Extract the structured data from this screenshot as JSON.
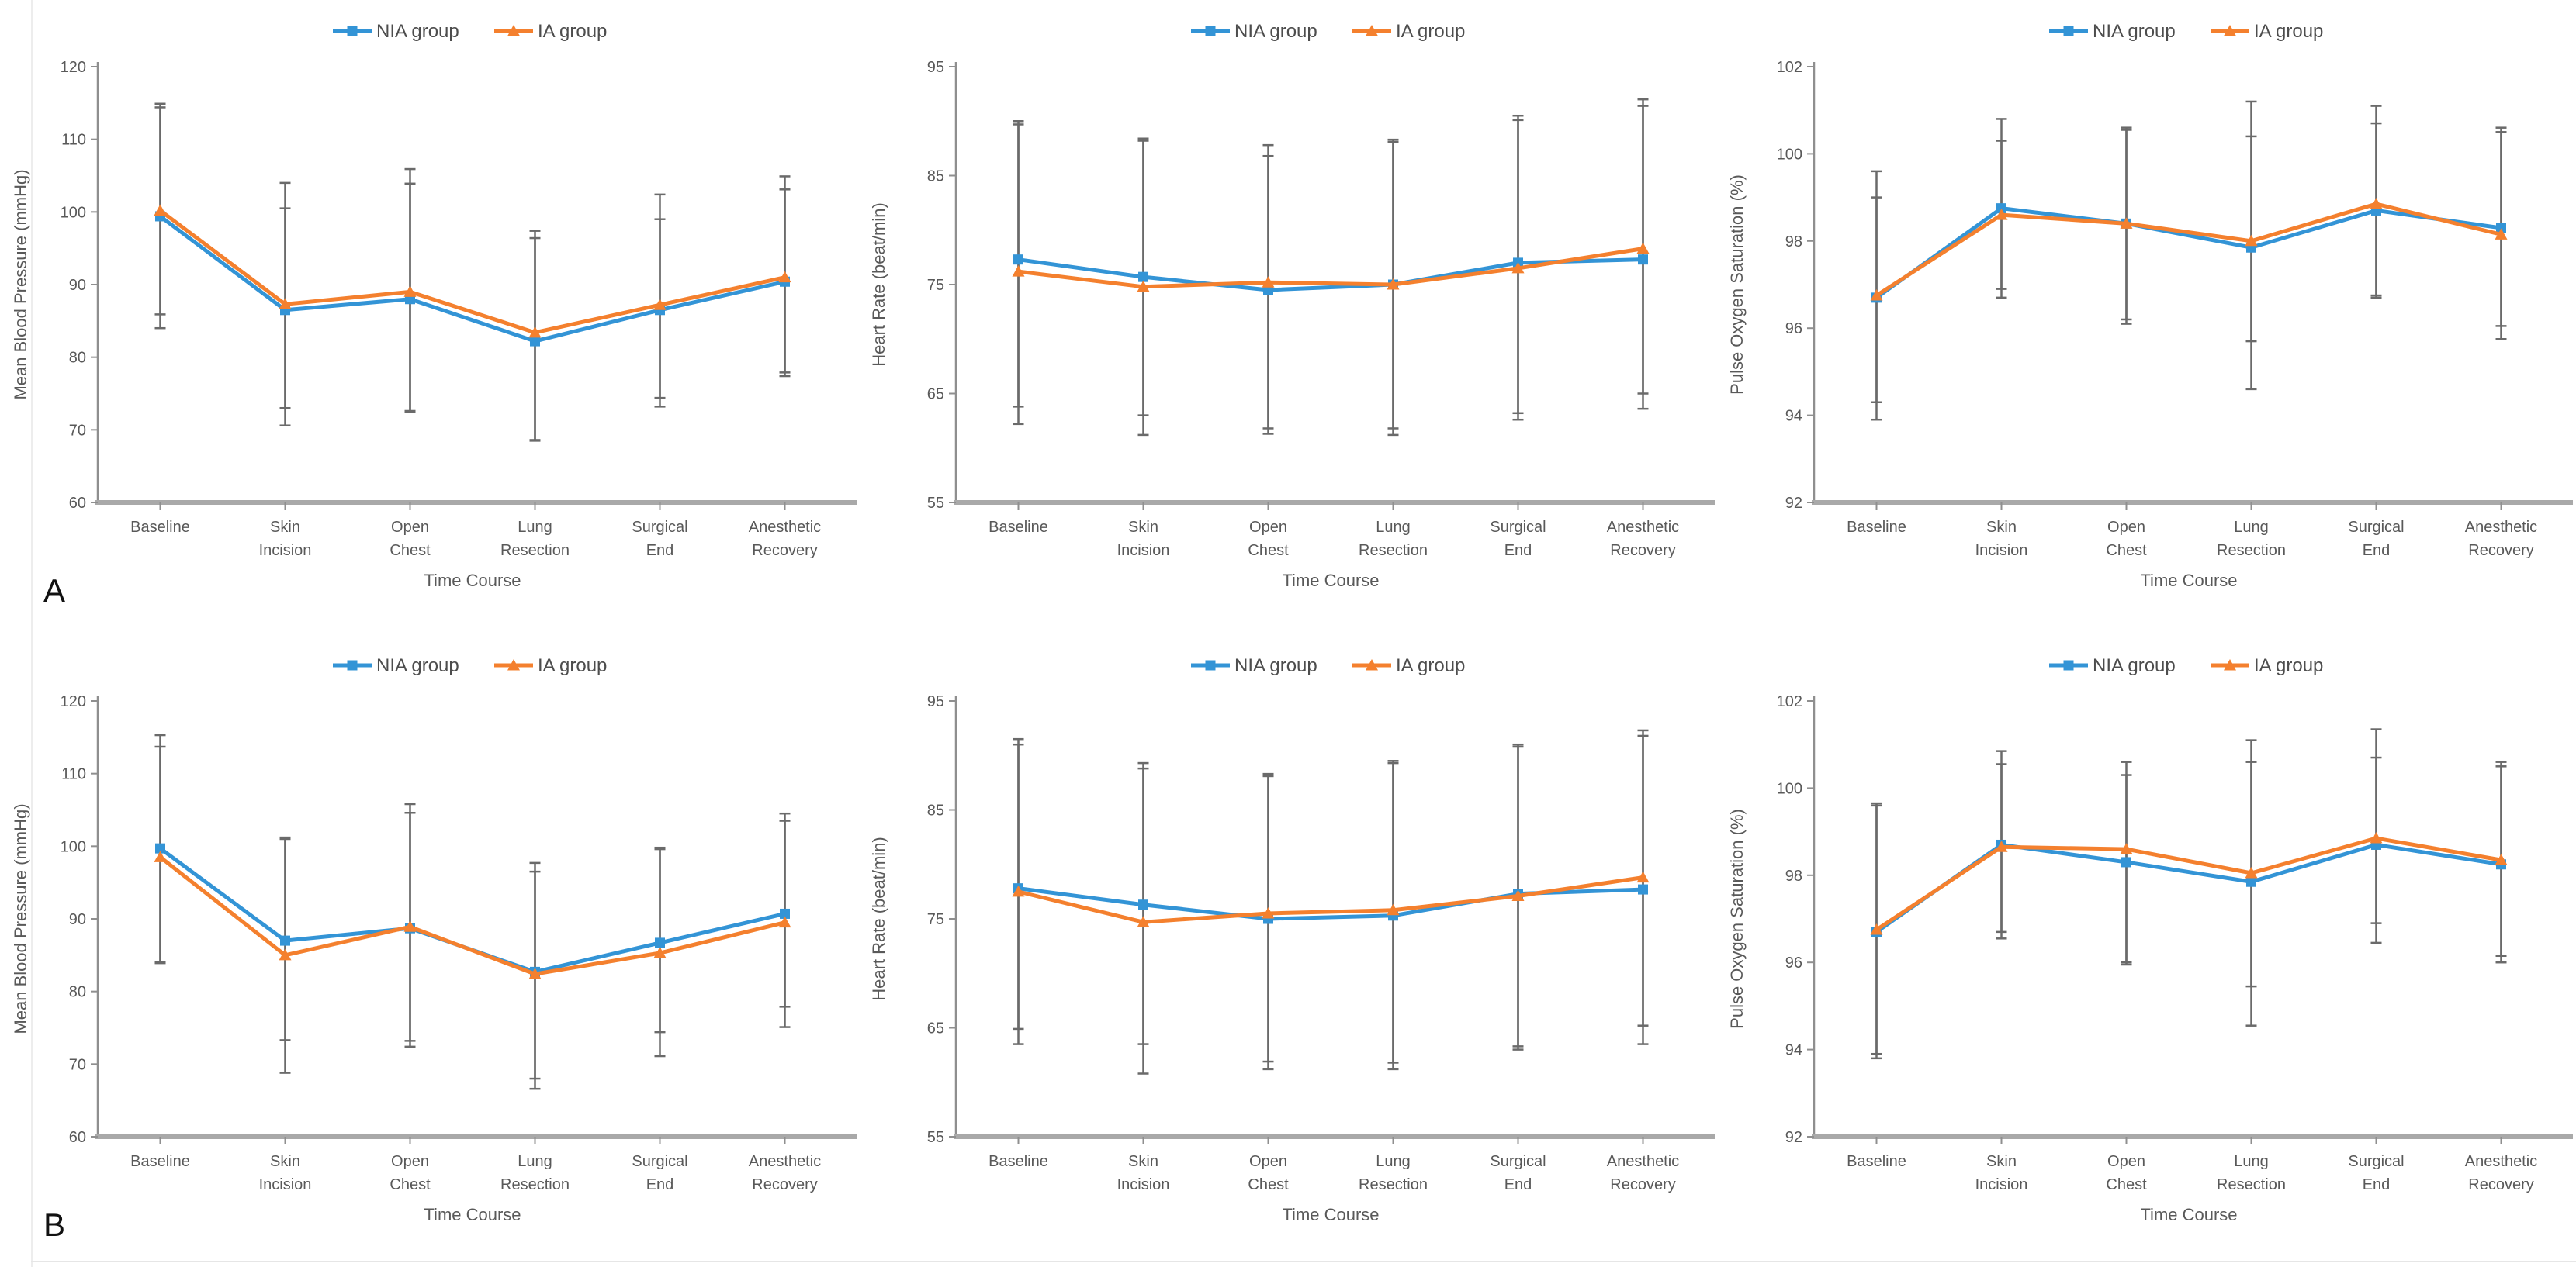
{
  "figure": {
    "panel_labels": [
      "A",
      "B"
    ],
    "background": "#FFFFFF",
    "text_color": "#595959",
    "axis_color": "#A9A9A9",
    "errorbar_color": "#6A6A6A",
    "legend_labels": [
      "NIA group",
      "IA group"
    ],
    "series_colors": {
      "nia": "#3394D6",
      "ia": "#F4802E"
    }
  },
  "chart_data": [
    {
      "panel": "A",
      "position": "top-left",
      "type": "line",
      "ylabel": "Mean Blood Pressure (mmHg)",
      "xlabel": "Time Course",
      "ylim": [
        60,
        120
      ],
      "ytick_step": 10,
      "grid": false,
      "legend_position": "top-center",
      "categories": [
        "Baseline",
        "Skin\nIncision",
        "Open\nChest",
        "Lung\nResection",
        "Surgical\nEnd",
        "Anesthetic\nRecovery"
      ],
      "series": [
        {
          "name": "NIA group",
          "color": "#3394D6",
          "marker": "square",
          "values": [
            99.4,
            86.5,
            88.0,
            82.2,
            86.5,
            90.4
          ],
          "err_lo": [
            84.0,
            70.6,
            72.5,
            68.5,
            73.2,
            77.4
          ],
          "err_hi": [
            114.9,
            104.0,
            105.9,
            97.4,
            102.4,
            104.9
          ]
        },
        {
          "name": "IA group",
          "color": "#F4802E",
          "marker": "triangle",
          "values": [
            100.2,
            87.3,
            89.0,
            83.4,
            87.2,
            91.0
          ],
          "err_lo": [
            85.9,
            73.0,
            72.6,
            68.6,
            74.4,
            77.9
          ],
          "err_hi": [
            114.4,
            100.5,
            103.9,
            96.4,
            99.0,
            103.1
          ]
        }
      ]
    },
    {
      "panel": "A",
      "position": "top-center",
      "type": "line",
      "ylabel": "Heart Rate (beat/min)",
      "xlabel": "Time Course",
      "ylim": [
        55,
        95
      ],
      "ytick_step": 10,
      "grid": false,
      "legend_position": "top-center",
      "categories": [
        "Baseline",
        "Skin\nIncision",
        "Open\nChest",
        "Lung\nResection",
        "Surgical\nEnd",
        "Anesthetic\nRecovery"
      ],
      "series": [
        {
          "name": "NIA group",
          "color": "#3394D6",
          "marker": "square",
          "values": [
            77.3,
            75.7,
            74.5,
            75.0,
            77.0,
            77.3
          ],
          "err_lo": [
            63.8,
            63.0,
            61.8,
            61.8,
            63.2,
            65.0
          ],
          "err_hi": [
            90.0,
            88.4,
            87.8,
            88.3,
            90.5,
            92.0
          ]
        },
        {
          "name": "IA group",
          "color": "#F4802E",
          "marker": "triangle",
          "values": [
            76.2,
            74.8,
            75.2,
            75.0,
            76.5,
            78.3
          ],
          "err_lo": [
            62.2,
            61.2,
            61.3,
            61.2,
            62.6,
            63.6
          ],
          "err_hi": [
            89.7,
            88.2,
            86.8,
            88.1,
            90.1,
            91.4
          ]
        }
      ]
    },
    {
      "panel": "A",
      "position": "top-right",
      "type": "line",
      "ylabel": "Pulse Oxygen Saturation (%)",
      "xlabel": "Time Course",
      "ylim": [
        92,
        102
      ],
      "ytick_step": 2,
      "grid": false,
      "legend_position": "top-center",
      "categories": [
        "Baseline",
        "Skin\nIncision",
        "Open\nChest",
        "Lung\nResection",
        "Surgical\nEnd",
        "Anesthetic\nRecovery"
      ],
      "series": [
        {
          "name": "NIA group",
          "color": "#3394D6",
          "marker": "square",
          "values": [
            96.7,
            98.75,
            98.4,
            97.85,
            98.7,
            98.3
          ],
          "err_lo": [
            94.3,
            96.9,
            96.2,
            95.7,
            96.75,
            96.05
          ],
          "err_hi": [
            99.6,
            100.8,
            100.6,
            101.2,
            101.1,
            100.6
          ]
        },
        {
          "name": "IA group",
          "color": "#F4802E",
          "marker": "triangle",
          "values": [
            96.75,
            98.6,
            98.4,
            98.0,
            98.85,
            98.15
          ],
          "err_lo": [
            93.9,
            96.7,
            96.1,
            94.6,
            96.7,
            95.75
          ],
          "err_hi": [
            99.0,
            100.3,
            100.55,
            100.4,
            100.7,
            100.5
          ]
        }
      ]
    },
    {
      "panel": "B",
      "position": "bottom-left",
      "type": "line",
      "ylabel": "Mean Blood Pressure (mmHg)",
      "xlabel": "Time Course",
      "ylim": [
        60,
        120
      ],
      "ytick_step": 10,
      "grid": false,
      "legend_position": "top-center",
      "categories": [
        "Baseline",
        "Skin\nIncision",
        "Open\nChest",
        "Lung\nResection",
        "Surgical\nEnd",
        "Anesthetic\nRecovery"
      ],
      "series": [
        {
          "name": "NIA group",
          "color": "#3394D6",
          "marker": "square",
          "values": [
            99.7,
            87.0,
            88.7,
            82.7,
            86.7,
            90.7
          ],
          "err_lo": [
            84.0,
            73.3,
            73.2,
            68.0,
            74.4,
            77.9
          ],
          "err_hi": [
            115.3,
            101.2,
            105.8,
            97.7,
            99.8,
            104.5
          ]
        },
        {
          "name": "IA group",
          "color": "#F4802E",
          "marker": "triangle",
          "values": [
            98.5,
            85.0,
            88.9,
            82.4,
            85.3,
            89.5
          ],
          "err_lo": [
            83.9,
            68.8,
            72.4,
            66.6,
            71.1,
            75.1
          ],
          "err_hi": [
            113.7,
            101.0,
            104.6,
            96.5,
            99.6,
            103.5
          ]
        }
      ]
    },
    {
      "panel": "B",
      "position": "bottom-center",
      "type": "line",
      "ylabel": "Heart Rate (beat/min)",
      "xlabel": "Time Course",
      "ylim": [
        55,
        95
      ],
      "ytick_step": 10,
      "grid": false,
      "legend_position": "top-center",
      "categories": [
        "Baseline",
        "Skin\nIncision",
        "Open\nChest",
        "Lung\nResection",
        "Surgical\nEnd",
        "Anesthetic\nRecovery"
      ],
      "series": [
        {
          "name": "NIA group",
          "color": "#3394D6",
          "marker": "square",
          "values": [
            77.8,
            76.3,
            75.0,
            75.3,
            77.3,
            77.7
          ],
          "err_lo": [
            64.9,
            63.5,
            61.9,
            61.8,
            63.3,
            65.2
          ],
          "err_hi": [
            91.5,
            89.3,
            88.3,
            89.5,
            91.0,
            92.3
          ]
        },
        {
          "name": "IA group",
          "color": "#F4802E",
          "marker": "triangle",
          "values": [
            77.5,
            74.7,
            75.5,
            75.8,
            77.1,
            78.8
          ],
          "err_lo": [
            63.5,
            60.8,
            61.2,
            61.2,
            63.0,
            63.5
          ],
          "err_hi": [
            91.0,
            88.8,
            88.1,
            89.3,
            90.8,
            91.8
          ]
        }
      ]
    },
    {
      "panel": "B",
      "position": "bottom-right",
      "type": "line",
      "ylabel": "Pulse Oxygen Saturation (%)",
      "xlabel": "Time Course",
      "ylim": [
        92,
        102
      ],
      "ytick_step": 2,
      "grid": false,
      "legend_position": "top-center",
      "categories": [
        "Baseline",
        "Skin\nIncision",
        "Open\nChest",
        "Lung\nResection",
        "Surgical\nEnd",
        "Anesthetic\nRecovery"
      ],
      "series": [
        {
          "name": "NIA group",
          "color": "#3394D6",
          "marker": "square",
          "values": [
            96.7,
            98.7,
            98.3,
            97.85,
            98.7,
            98.25
          ],
          "err_lo": [
            93.9,
            96.7,
            96.0,
            95.45,
            96.9,
            96.15
          ],
          "err_hi": [
            99.65,
            100.85,
            100.6,
            101.1,
            101.35,
            100.6
          ]
        },
        {
          "name": "IA group",
          "color": "#F4802E",
          "marker": "triangle",
          "values": [
            96.75,
            98.65,
            98.6,
            98.05,
            98.85,
            98.35
          ],
          "err_lo": [
            93.8,
            96.55,
            95.95,
            94.55,
            96.45,
            96.0
          ],
          "err_hi": [
            99.6,
            100.55,
            100.3,
            100.6,
            100.7,
            100.5
          ]
        }
      ]
    }
  ]
}
